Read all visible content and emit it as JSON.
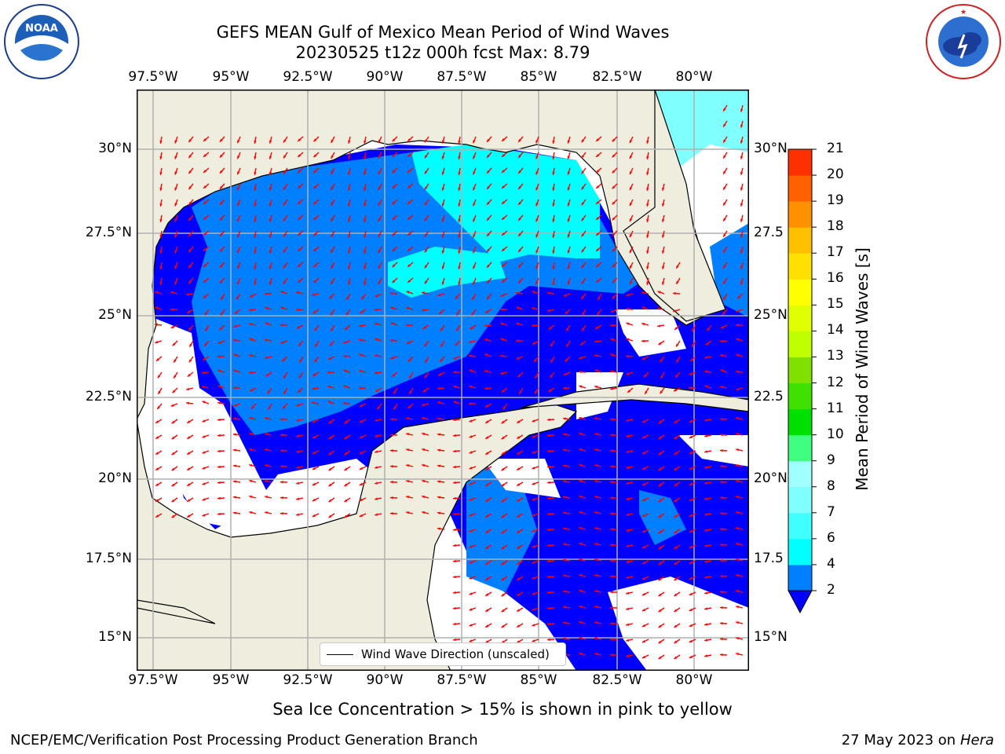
{
  "header": {
    "title_line1": "GEFS MEAN Gulf of Mexico Mean Period of Wind Waves",
    "title_line2": "20230525 t12z 000h fcst   Max: 8.79"
  },
  "logos": {
    "left": {
      "text": "NOAA",
      "ring_text": "NATIONAL OCEANIC AND ATMOSPHERIC ADMINISTRATION · U.S. DEPARTMENT OF COMMERCE"
    },
    "right": {
      "ring_text": "NATIONAL WEATHER SERVICE"
    }
  },
  "map": {
    "lon_labels": [
      "97.5°W",
      "95°W",
      "92.5°W",
      "90°W",
      "87.5°W",
      "85°W",
      "82.5°W",
      "80°W"
    ],
    "lat_labels_left": [
      "30°N",
      "27.5°N",
      "25°N",
      "22.5°N",
      "20°N",
      "17.5°N",
      "15°N"
    ],
    "lat_labels_right": [
      "30°N",
      "27.5",
      "25°N",
      "22.5",
      "20°N",
      "17.5",
      "15°N"
    ],
    "legend_label": "Wind Wave Direction (unscaled)",
    "colors": {
      "land": "#eeedde",
      "ocean_low": "#0000ff",
      "ocean_mid": "#0080ff",
      "ocean_cyan": "#00ffff",
      "ocean_lightcyan": "#80ffff",
      "arrow": "#ff0000",
      "grid": "#b0b0b0"
    }
  },
  "colorbar": {
    "label": "Mean Period of Wind Waves [s]",
    "ticks": [
      "2",
      "4",
      "6",
      "7",
      "8",
      "9",
      "10",
      "11",
      "12",
      "13",
      "14",
      "15",
      "16",
      "17",
      "18",
      "19",
      "20",
      "21"
    ],
    "colors": [
      "#0080ff",
      "#00ffff",
      "#40ffff",
      "#80ffff",
      "#a0ffff",
      "#40ff80",
      "#00e000",
      "#40e000",
      "#80e000",
      "#c0ff00",
      "#e0ff00",
      "#ffff00",
      "#ffe000",
      "#ffc000",
      "#ff9000",
      "#ff6000",
      "#ff3000",
      "#ff0000"
    ],
    "extend_color": "#0000ff"
  },
  "footer": {
    "note": "Sea Ice Concentration > 15% is shown in pink to yellow",
    "left": "NCEP/EMC/Verification Post Processing Product Generation Branch",
    "right_date": "27 May 2023 on",
    "right_machine": "Hera"
  }
}
